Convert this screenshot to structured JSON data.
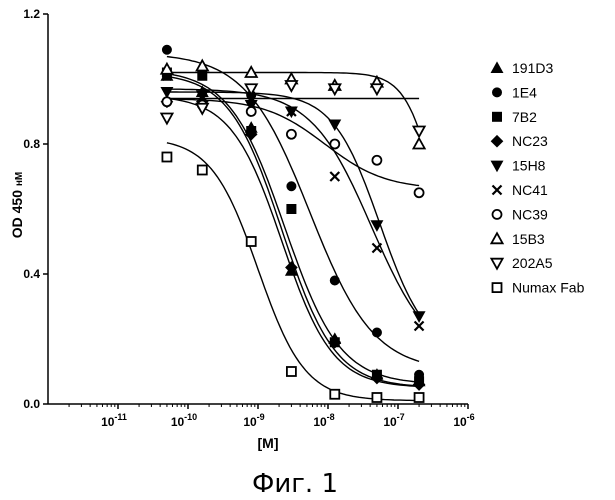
{
  "chart_data": {
    "type": "scatter",
    "title": "",
    "xlabel": "[M]",
    "ylabel_main": "OD 450 ",
    "ylabel_unit": "нМ",
    "xscale": "log",
    "xlim": [
      1e-12,
      1e-06
    ],
    "ylim": [
      0.0,
      1.2
    ],
    "grid": false,
    "legend_position": "right",
    "caption": "Фиг. 1",
    "x_ticks": [
      {
        "value": 1e-11,
        "base": "10",
        "exp": "-11"
      },
      {
        "value": 1e-10,
        "base": "10",
        "exp": "-10"
      },
      {
        "value": 1e-09,
        "base": "10",
        "exp": "-9"
      },
      {
        "value": 1e-08,
        "base": "10",
        "exp": "-8"
      },
      {
        "value": 1e-07,
        "base": "10",
        "exp": "-7"
      },
      {
        "value": 1e-06,
        "base": "10",
        "exp": "-6"
      }
    ],
    "y_ticks": [
      {
        "value": 0.0,
        "label": "0.0"
      },
      {
        "value": 0.4,
        "label": "0.4"
      },
      {
        "value": 0.8,
        "label": "0.8"
      },
      {
        "value": 1.2,
        "label": "1.2"
      }
    ],
    "series": [
      {
        "name": "191D3",
        "marker": "triangle-up-filled",
        "x": [
          5e-11,
          1.6e-10,
          8e-10,
          3e-09,
          1.25e-08,
          5e-08,
          2e-07
        ],
        "y": [
          1.01,
          0.96,
          0.85,
          0.41,
          0.2,
          0.09,
          0.07
        ],
        "fit": {
          "bottom": 0.05,
          "top": 1.02,
          "ec50": 2.2e-09,
          "hill": 1.15
        }
      },
      {
        "name": "1E4",
        "marker": "circle-filled",
        "x": [
          5e-11,
          1.6e-10,
          8e-10,
          3e-09,
          1.25e-08,
          5e-08,
          2e-07
        ],
        "y": [
          1.09,
          1.03,
          0.95,
          0.67,
          0.38,
          0.22,
          0.09
        ],
        "fit": {
          "bottom": 0.1,
          "top": 1.08,
          "ec50": 5.5e-09,
          "hill": 0.95
        }
      },
      {
        "name": "7B2",
        "marker": "square-filled",
        "x": [
          5e-11,
          1.6e-10,
          8e-10,
          3e-09,
          1.25e-08,
          5e-08,
          2e-07
        ],
        "y": [
          1.02,
          1.01,
          0.84,
          0.6,
          0.19,
          0.09,
          0.07
        ],
        "fit": {
          "bottom": 0.06,
          "top": 1.03,
          "ec50": 2.4e-09,
          "hill": 1.1
        }
      },
      {
        "name": "NC23",
        "marker": "diamond-filled",
        "x": [
          5e-11,
          1.6e-10,
          8e-10,
          3e-09,
          1.25e-08,
          5e-08,
          2e-07
        ],
        "y": [
          0.93,
          0.93,
          0.83,
          0.42,
          0.19,
          0.08,
          0.06
        ],
        "fit": {
          "bottom": 0.05,
          "top": 0.95,
          "ec50": 2.2e-09,
          "hill": 1.2
        }
      },
      {
        "name": "15H8",
        "marker": "triangle-down-filled",
        "x": [
          5e-11,
          1.6e-10,
          8e-10,
          3e-09,
          1.25e-08,
          5e-08,
          2e-07
        ],
        "y": [
          0.96,
          0.95,
          0.92,
          0.9,
          0.86,
          0.55,
          0.27
        ],
        "fit": {
          "bottom": 0.15,
          "top": 0.96,
          "ec50": 5.5e-08,
          "hill": 1.3
        }
      },
      {
        "name": "NC41",
        "marker": "x-cross",
        "x": [
          5e-11,
          1.6e-10,
          8e-10,
          3e-09,
          1.25e-08,
          5e-08,
          2e-07
        ],
        "y": [
          1.01,
          0.94,
          0.94,
          0.9,
          0.7,
          0.48,
          0.24
        ],
        "fit": {
          "bottom": 0.12,
          "top": 0.97,
          "ec50": 4.2e-08,
          "hill": 1.0
        }
      },
      {
        "name": "NC39",
        "marker": "circle-open",
        "x": [
          5e-11,
          1.6e-10,
          8e-10,
          3e-09,
          1.25e-08,
          5e-08,
          2e-07
        ],
        "y": [
          0.93,
          0.92,
          0.9,
          0.83,
          0.8,
          0.75,
          0.65
        ],
        "fit": {
          "bottom": 0.66,
          "top": 0.94,
          "ec50": 9e-09,
          "hill": 1.0
        }
      },
      {
        "name": "15B3",
        "marker": "triangle-up-open",
        "x": [
          5e-11,
          1.6e-10,
          8e-10,
          3e-09,
          1.25e-08,
          5e-08,
          2e-07
        ],
        "y": [
          1.03,
          1.04,
          1.02,
          1.0,
          0.98,
          0.99,
          0.8
        ],
        "fit": {
          "type": "flat",
          "value": 0.94
        }
      },
      {
        "name": "202A5",
        "marker": "triangle-down-open",
        "x": [
          5e-11,
          1.6e-10,
          8e-10,
          3e-09,
          1.25e-08,
          5e-08,
          2e-07
        ],
        "y": [
          0.88,
          0.91,
          0.97,
          0.98,
          0.97,
          0.97,
          0.84
        ],
        "fit": {
          "bottom": 0.3,
          "top": 1.02,
          "ec50": 3.5e-07,
          "hill": 2.0
        }
      },
      {
        "name": "Numax Fab",
        "marker": "square-open",
        "x": [
          5e-11,
          1.6e-10,
          8e-10,
          3e-09,
          1.25e-08,
          5e-08,
          2e-07
        ],
        "y": [
          0.76,
          0.72,
          0.5,
          0.1,
          0.03,
          0.02,
          0.02
        ],
        "fit": {
          "bottom": 0.01,
          "top": 0.82,
          "ec50": 1e-09,
          "hill": 1.3
        }
      }
    ]
  }
}
